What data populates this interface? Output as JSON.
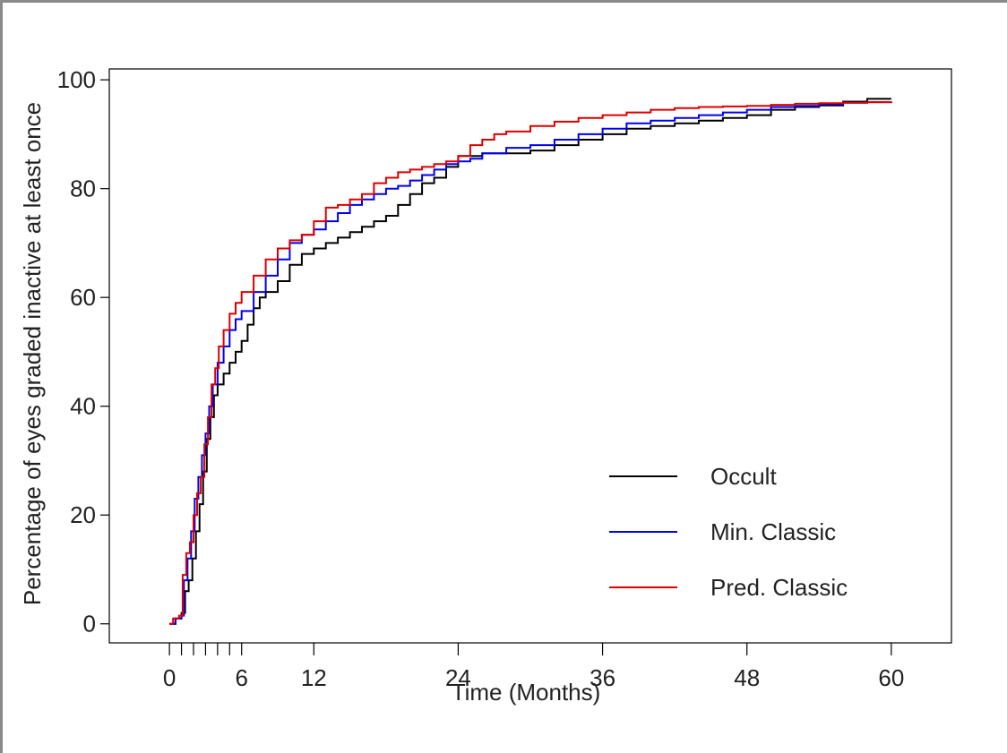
{
  "chart_data": {
    "type": "line",
    "line_shape": "step",
    "xlabel": "Time (Months)",
    "ylabel": "Percentage of eyes graded inactive at least once",
    "xlim": [
      -5,
      65
    ],
    "ylim": [
      -3.5,
      102
    ],
    "x_ticks": [
      0,
      6,
      12,
      24,
      36,
      48,
      60
    ],
    "x_minor_ticks": [
      1,
      2,
      3,
      4,
      5
    ],
    "y_ticks": [
      0,
      20,
      40,
      60,
      80,
      100
    ],
    "grid": false,
    "legend_position": "bottom-right",
    "series": [
      {
        "name": "Occult",
        "color": "#000000",
        "points": [
          [
            0,
            0
          ],
          [
            0.5,
            1
          ],
          [
            1,
            2
          ],
          [
            1.3,
            6
          ],
          [
            1.6,
            8
          ],
          [
            1.9,
            12
          ],
          [
            2.2,
            17
          ],
          [
            2.5,
            22
          ],
          [
            2.8,
            28
          ],
          [
            3.1,
            34
          ],
          [
            3.4,
            38
          ],
          [
            3.7,
            42
          ],
          [
            4,
            44
          ],
          [
            4.5,
            46
          ],
          [
            5,
            48
          ],
          [
            5.5,
            50
          ],
          [
            6,
            52
          ],
          [
            6.5,
            55
          ],
          [
            7,
            58
          ],
          [
            7.5,
            60
          ],
          [
            8,
            61
          ],
          [
            9,
            63
          ],
          [
            10,
            66
          ],
          [
            11,
            68
          ],
          [
            12,
            69
          ],
          [
            13,
            70
          ],
          [
            14,
            71
          ],
          [
            15,
            72
          ],
          [
            16,
            73
          ],
          [
            17,
            74
          ],
          [
            18,
            75
          ],
          [
            19,
            77
          ],
          [
            20,
            79
          ],
          [
            21,
            81
          ],
          [
            22,
            82
          ],
          [
            23,
            84
          ],
          [
            24,
            86
          ],
          [
            26,
            86.5
          ],
          [
            28,
            86.5
          ],
          [
            30,
            87
          ],
          [
            32,
            88
          ],
          [
            34,
            89
          ],
          [
            36,
            90
          ],
          [
            38,
            91
          ],
          [
            40,
            91.5
          ],
          [
            42,
            92
          ],
          [
            44,
            92.5
          ],
          [
            46,
            93
          ],
          [
            48,
            93.5
          ],
          [
            50,
            94.5
          ],
          [
            52,
            95
          ],
          [
            54,
            95.3
          ],
          [
            56,
            96
          ],
          [
            58,
            96.5
          ],
          [
            60,
            96.5
          ]
        ]
      },
      {
        "name": "Min. Classic",
        "color": "#0000ee",
        "points": [
          [
            0,
            0
          ],
          [
            0.5,
            1
          ],
          [
            1,
            1.5
          ],
          [
            1.2,
            8
          ],
          [
            1.5,
            12
          ],
          [
            1.8,
            17
          ],
          [
            2.1,
            23
          ],
          [
            2.4,
            27
          ],
          [
            2.7,
            31
          ],
          [
            3,
            35
          ],
          [
            3.3,
            40
          ],
          [
            3.6,
            44
          ],
          [
            4,
            48
          ],
          [
            4.5,
            51
          ],
          [
            5,
            54
          ],
          [
            5.5,
            56
          ],
          [
            6,
            57.5
          ],
          [
            7,
            61
          ],
          [
            8,
            64
          ],
          [
            9,
            67
          ],
          [
            10,
            70
          ],
          [
            11,
            71.5
          ],
          [
            12,
            72.5
          ],
          [
            13,
            74
          ],
          [
            14,
            75.5
          ],
          [
            15,
            77
          ],
          [
            16,
            78
          ],
          [
            17,
            79
          ],
          [
            18,
            80
          ],
          [
            19,
            80.5
          ],
          [
            20,
            81.5
          ],
          [
            21,
            82.5
          ],
          [
            22,
            83.5
          ],
          [
            23,
            84.5
          ],
          [
            24,
            85
          ],
          [
            25,
            85.5
          ],
          [
            26,
            86.5
          ],
          [
            28,
            87.5
          ],
          [
            30,
            88
          ],
          [
            32,
            89
          ],
          [
            34,
            90
          ],
          [
            36,
            91
          ],
          [
            38,
            92
          ],
          [
            40,
            92.5
          ],
          [
            42,
            93
          ],
          [
            44,
            93.5
          ],
          [
            46,
            94
          ],
          [
            48,
            94.5
          ],
          [
            50,
            95
          ],
          [
            52,
            95.2
          ],
          [
            54,
            95.5
          ],
          [
            56,
            95.8
          ],
          [
            58,
            95.9
          ],
          [
            60,
            96
          ]
        ]
      },
      {
        "name": "Pred. Classic",
        "color": "#dd0000",
        "points": [
          [
            0,
            0
          ],
          [
            0.3,
            1
          ],
          [
            0.8,
            1.5
          ],
          [
            1.1,
            9
          ],
          [
            1.4,
            13
          ],
          [
            1.7,
            15
          ],
          [
            2,
            20
          ],
          [
            2.3,
            24
          ],
          [
            2.6,
            27
          ],
          [
            2.9,
            33
          ],
          [
            3.2,
            38
          ],
          [
            3.5,
            44
          ],
          [
            3.8,
            47
          ],
          [
            4.1,
            51
          ],
          [
            4.5,
            54
          ],
          [
            5,
            57
          ],
          [
            5.5,
            59
          ],
          [
            6,
            61
          ],
          [
            7,
            64
          ],
          [
            8,
            67
          ],
          [
            9,
            69
          ],
          [
            10,
            70.5
          ],
          [
            11,
            71.5
          ],
          [
            12,
            74
          ],
          [
            13,
            76.5
          ],
          [
            14,
            77
          ],
          [
            15,
            78
          ],
          [
            16,
            79
          ],
          [
            17,
            81
          ],
          [
            18,
            82
          ],
          [
            19,
            83
          ],
          [
            20,
            83.5
          ],
          [
            21,
            84
          ],
          [
            22,
            84.5
          ],
          [
            23,
            85
          ],
          [
            24,
            86
          ],
          [
            25,
            88
          ],
          [
            26,
            89
          ],
          [
            27,
            90
          ],
          [
            28,
            90.5
          ],
          [
            30,
            91.5
          ],
          [
            32,
            92.3
          ],
          [
            34,
            93
          ],
          [
            36,
            93.5
          ],
          [
            38,
            94
          ],
          [
            40,
            94.5
          ],
          [
            42,
            94.8
          ],
          [
            44,
            95
          ],
          [
            46,
            95.1
          ],
          [
            48,
            95.2
          ],
          [
            50,
            95.4
          ],
          [
            52,
            95.6
          ],
          [
            54,
            95.7
          ],
          [
            56,
            95.8
          ],
          [
            58,
            95.9
          ],
          [
            60,
            96
          ]
        ]
      }
    ]
  }
}
